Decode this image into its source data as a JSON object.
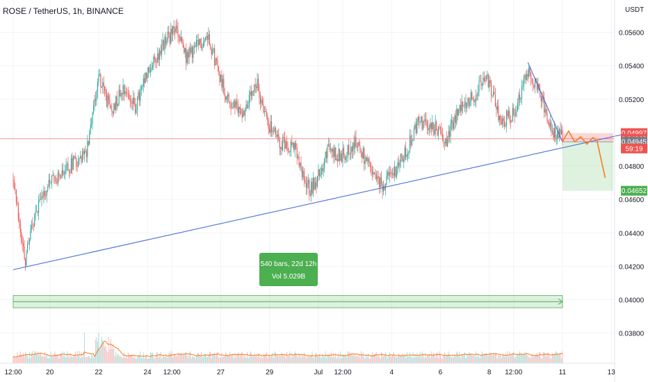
{
  "chart_data": {
    "type": "candlestick",
    "title": "ROSE / TetherUS, 1h, BINANCE",
    "unit_label": "USDT",
    "ylim": [
      0.0362,
      0.0576
    ],
    "y_ticks": [
      {
        "value": 0.056,
        "label": "0.05600"
      },
      {
        "value": 0.054,
        "label": "0.05400"
      },
      {
        "value": 0.052,
        "label": "0.05200"
      },
      {
        "value": 0.048,
        "label": "0.04800"
      },
      {
        "value": 0.046,
        "label": "0.04600"
      },
      {
        "value": 0.044,
        "label": "0.04400"
      },
      {
        "value": 0.042,
        "label": "0.04200"
      },
      {
        "value": 0.04,
        "label": "0.04000"
      },
      {
        "value": 0.038,
        "label": "0.03800"
      }
    ],
    "x_ticks": [
      {
        "label": "12:00",
        "bar": 0
      },
      {
        "label": "20",
        "bar": 36
      },
      {
        "label": "22",
        "bar": 84
      },
      {
        "label": "24",
        "bar": 132
      },
      {
        "label": "12:00",
        "bar": 156
      },
      {
        "label": "27",
        "bar": 204
      },
      {
        "label": "29",
        "bar": 252
      },
      {
        "label": "Jul",
        "bar": 300
      },
      {
        "label": "12:00",
        "bar": 324
      },
      {
        "label": "4",
        "bar": 372
      },
      {
        "label": "6",
        "bar": 420
      },
      {
        "label": "8",
        "bar": 468
      },
      {
        "label": "12:00",
        "bar": 492
      },
      {
        "label": "11",
        "bar": 540
      },
      {
        "label": "13",
        "bar": 588
      }
    ],
    "price_path": [
      [
        0,
        0.0472
      ],
      [
        8,
        0.0438
      ],
      [
        12,
        0.0422
      ],
      [
        18,
        0.0445
      ],
      [
        30,
        0.0465
      ],
      [
        45,
        0.0475
      ],
      [
        60,
        0.0482
      ],
      [
        72,
        0.0488
      ],
      [
        84,
        0.0535
      ],
      [
        96,
        0.0512
      ],
      [
        108,
        0.0528
      ],
      [
        120,
        0.0515
      ],
      [
        132,
        0.0535
      ],
      [
        150,
        0.0555
      ],
      [
        160,
        0.0562
      ],
      [
        170,
        0.0545
      ],
      [
        182,
        0.0552
      ],
      [
        192,
        0.0558
      ],
      [
        200,
        0.054
      ],
      [
        212,
        0.0518
      ],
      [
        226,
        0.0512
      ],
      [
        240,
        0.0528
      ],
      [
        250,
        0.0506
      ],
      [
        262,
        0.0494
      ],
      [
        276,
        0.0492
      ],
      [
        284,
        0.0474
      ],
      [
        292,
        0.0466
      ],
      [
        300,
        0.0474
      ],
      [
        310,
        0.049
      ],
      [
        322,
        0.0486
      ],
      [
        338,
        0.0494
      ],
      [
        352,
        0.0476
      ],
      [
        362,
        0.0468
      ],
      [
        374,
        0.0476
      ],
      [
        386,
        0.0488
      ],
      [
        398,
        0.0506
      ],
      [
        412,
        0.0504
      ],
      [
        426,
        0.0496
      ],
      [
        440,
        0.0516
      ],
      [
        452,
        0.0522
      ],
      [
        466,
        0.0532
      ],
      [
        480,
        0.0506
      ],
      [
        492,
        0.0512
      ],
      [
        506,
        0.0538
      ],
      [
        514,
        0.0528
      ],
      [
        524,
        0.0512
      ],
      [
        532,
        0.05
      ],
      [
        540,
        0.0497
      ]
    ],
    "volume_series": {
      "name": "Vol",
      "total_label": "Vol 5.029B"
    },
    "price_labels": [
      {
        "value": 0.04997,
        "label": "0.04997",
        "color": "#ef5350"
      },
      {
        "value": 0.04963,
        "label": "0.04963",
        "color": "#ef5350"
      },
      {
        "value": 0.04945,
        "label": "0.04945",
        "color": "#787b86"
      },
      {
        "value": 0.04652,
        "label": "0.04652",
        "color": "#4caf50"
      }
    ],
    "countdown": {
      "label": "59:19",
      "color": "#ef5350"
    },
    "current_price": 0.04963,
    "trendlines": [
      {
        "name": "support-trendline",
        "from": {
          "bar": 0,
          "value": 0.0418
        },
        "to": {
          "bar": 600,
          "value": 0.0499
        },
        "color": "#4a6fd8"
      },
      {
        "name": "resistance-trendline",
        "from": {
          "bar": 506,
          "value": 0.0542
        },
        "to": {
          "bar": 540,
          "value": 0.04945
        },
        "color": "#4a6fd8"
      }
    ],
    "projection_path": [
      [
        540,
        0.04945
      ],
      [
        546,
        0.0501
      ],
      [
        552,
        0.04945
      ],
      [
        558,
        0.04975
      ],
      [
        564,
        0.0493
      ],
      [
        570,
        0.0497
      ],
      [
        574,
        0.0495
      ],
      [
        582,
        0.0473
      ]
    ],
    "projection_color": "#f57c20",
    "short_position": {
      "from_bar": 540,
      "to_bar": 590,
      "entry": 0.04945,
      "stop": 0.04997,
      "target": 0.04652,
      "risk_color": "#f4a6a6",
      "reward_color": "#b8dfb9"
    },
    "range_measure": {
      "from_bar": 0,
      "to_bar": 540,
      "top": 0.04025,
      "bottom": 0.03952,
      "bars_label": "540 bars, 22d 12h",
      "vol_label": "Vol 5.029B",
      "color": "#4caf50"
    },
    "colors": {
      "up": "#26a69a",
      "down": "#ef5350",
      "grid": "#f0f3fa",
      "axis_text": "#131722"
    }
  }
}
